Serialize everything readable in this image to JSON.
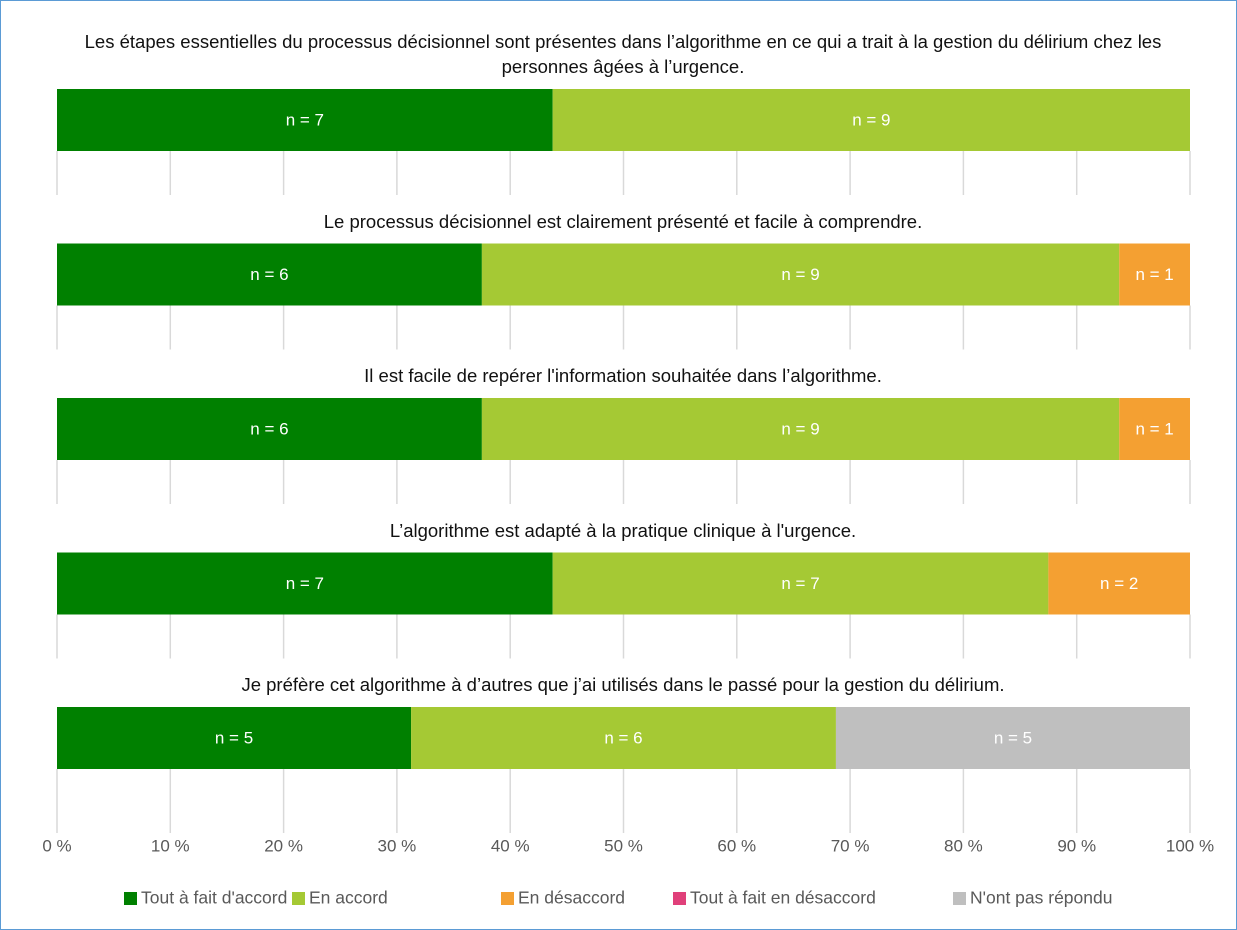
{
  "chart_data": {
    "type": "bar",
    "orientation": "horizontal",
    "stacked": "percent",
    "categories": [
      "Les étapes essentielles du processus décisionnel sont présentes dans l’algorithme en ce qui a trait à la gestion du délirium chez les personnes âgées à l’urgence.",
      "Le processus décisionnel est clairement présenté et facile à comprendre.",
      "Il est facile de repérer l'information souhaitée dans l’algorithme.",
      "L’algorithme est adapté à la pratique clinique à l'urgence.",
      "Je préfère cet algorithme à d’autres que j’ai utilisés dans le passé pour la gestion du délirium."
    ],
    "series": [
      {
        "name": "Tout à fait d'accord",
        "color": "#008000",
        "values": [
          7,
          6,
          6,
          7,
          5
        ],
        "value_labels": [
          "n = 7",
          "n = 6",
          "n = 6",
          "n = 7",
          "n = 5"
        ]
      },
      {
        "name": "En accord",
        "color": "#a5c934",
        "values": [
          9,
          9,
          9,
          7,
          6
        ],
        "value_labels": [
          "n = 9",
          "n = 9",
          "n = 9",
          "n = 7",
          "n = 6"
        ]
      },
      {
        "name": "En désaccord",
        "color": "#f4a032",
        "values": [
          0,
          1,
          1,
          2,
          0
        ],
        "value_labels": [
          null,
          "n = 1",
          "n = 1",
          "n = 2",
          null
        ]
      },
      {
        "name": "Tout à fait en désaccord",
        "color": "#e0407a",
        "values": [
          0,
          0,
          0,
          0,
          0
        ],
        "value_labels": [
          null,
          null,
          null,
          null,
          null
        ]
      },
      {
        "name": "N'ont pas répondu",
        "color": "#bfbfbf",
        "values": [
          0,
          0,
          0,
          0,
          5
        ],
        "value_labels": [
          null,
          null,
          null,
          null,
          "n = 5"
        ]
      }
    ],
    "xlim": [
      0,
      100
    ],
    "xticks": [
      {
        "value": 0,
        "label": "0 %"
      },
      {
        "value": 10,
        "label": "10 %"
      },
      {
        "value": 20,
        "label": "20 %"
      },
      {
        "value": 30,
        "label": "30 %"
      },
      {
        "value": 40,
        "label": "40 %"
      },
      {
        "value": 50,
        "label": "50 %"
      },
      {
        "value": 60,
        "label": "60 %"
      },
      {
        "value": 70,
        "label": "70 %"
      },
      {
        "value": 80,
        "label": "80 %"
      },
      {
        "value": 90,
        "label": "90 %"
      },
      {
        "value": 100,
        "label": "100 %"
      }
    ],
    "grid": true,
    "legend": "bottom"
  }
}
